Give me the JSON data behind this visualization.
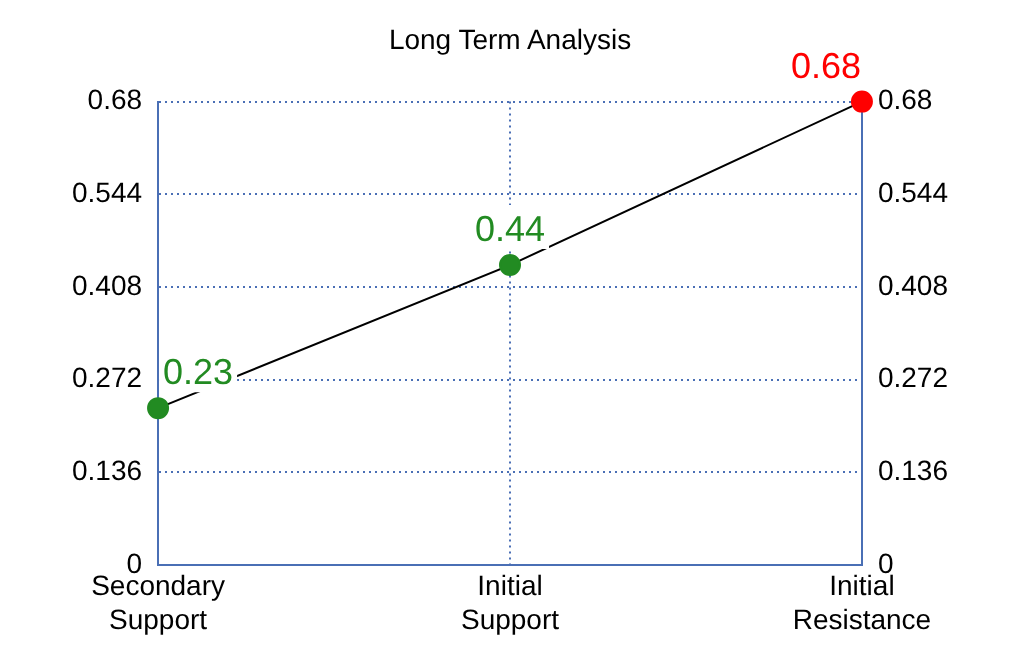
{
  "chart_data": {
    "type": "line",
    "title": "Long Term Analysis",
    "categories": [
      "Secondary Support",
      "Initial Support",
      "Initial Resistance"
    ],
    "series": [
      {
        "color": "#000000",
        "colors": [
          "#228b22",
          "#228b22",
          "#ff0000"
        ],
        "values": [
          0.23,
          0.44,
          0.68
        ]
      }
    ],
    "ylim": [
      0,
      0.68
    ],
    "yticks": [
      0,
      0.136,
      0.272,
      0.408,
      0.544,
      0.68
    ],
    "y2lim": [
      0,
      0.68
    ],
    "y2ticks": [
      0,
      0.136,
      0.272,
      0.408,
      0.544,
      0.68
    ],
    "grid": true,
    "marker": "circle",
    "line_style": "solid",
    "data_labels": true,
    "legend": false
  }
}
